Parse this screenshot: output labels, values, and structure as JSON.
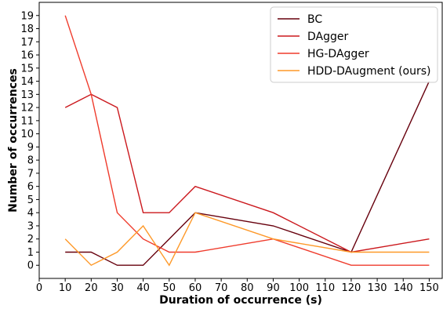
{
  "chart_data": {
    "type": "line",
    "xlabel": "Duration of occurrence (s)",
    "ylabel": "Number of occurrences",
    "xlim": [
      0,
      155
    ],
    "ylim": [
      -1.0,
      20.0
    ],
    "xticks": [
      0,
      10,
      20,
      30,
      40,
      50,
      60,
      70,
      80,
      90,
      100,
      110,
      120,
      130,
      140,
      150
    ],
    "yticks": [
      0,
      1,
      2,
      3,
      4,
      5,
      6,
      7,
      8,
      9,
      10,
      11,
      12,
      13,
      14,
      15,
      16,
      17,
      18,
      19
    ],
    "grid": false,
    "legend_position": "top-right",
    "x": [
      10,
      20,
      30,
      40,
      50,
      60,
      90,
      120,
      150
    ],
    "series": [
      {
        "name": "BC",
        "color": "#67000d",
        "values": [
          1,
          1,
          0,
          0,
          2,
          4,
          3,
          1,
          14
        ]
      },
      {
        "name": "DAgger",
        "color": "#cb181d",
        "values": [
          12,
          13,
          12,
          4,
          4,
          6,
          4,
          1,
          2
        ]
      },
      {
        "name": "HG-DAgger",
        "color": "#ef3b2c",
        "values": [
          19,
          13,
          4,
          2,
          1,
          1,
          2,
          0,
          0
        ]
      },
      {
        "name": "HDD-DAugment (ours)",
        "color": "#fe9929",
        "values": [
          2,
          0,
          1,
          3,
          0,
          4,
          2,
          1,
          1
        ]
      }
    ]
  }
}
